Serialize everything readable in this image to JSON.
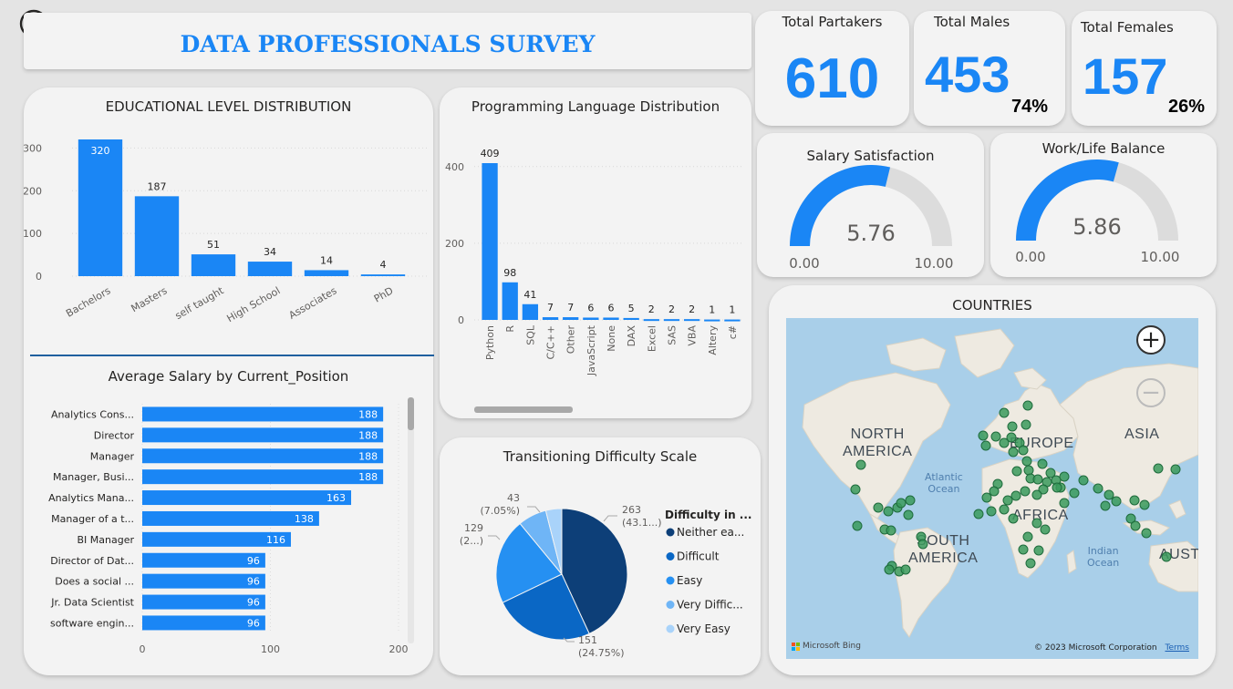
{
  "header": {
    "title": "DATA PROFESSIONALS SURVEY"
  },
  "kpis": {
    "partakers": {
      "label": "Total Partakers",
      "value": "610"
    },
    "males": {
      "label": "Total Males",
      "value": "453",
      "pct": "74%"
    },
    "females": {
      "label": "Total Females",
      "value": "157",
      "pct": "26%"
    }
  },
  "gauges": {
    "salary": {
      "label": "Salary Satisfaction",
      "value": 5.76,
      "value_text": "5.76",
      "min_text": "0.00",
      "max_text": "10.00"
    },
    "worklife": {
      "label": "Work/Life Balance",
      "value": 5.86,
      "value_text": "5.86",
      "min_text": "0.00",
      "max_text": "10.00"
    }
  },
  "countries": {
    "title": "COUNTRIES",
    "labels": {
      "north_america": [
        "NORTH",
        "AMERICA"
      ],
      "south_america": [
        "SOUTH",
        "AMERICA"
      ],
      "europe": "EUROPE",
      "asia": "ASIA",
      "africa": "AFRICA",
      "aust": "AUST",
      "atlantic": [
        "Atlantic",
        "Ocean"
      ],
      "indian": [
        "Indian",
        "Ocean"
      ]
    },
    "attribution": "Microsoft Bing",
    "copyright": "© 2023 Microsoft Corporation",
    "terms": "Terms",
    "zoom_in": "+",
    "zoom_out": "−"
  },
  "colors": {
    "accent": "#1a86f5",
    "gauge_track": "#dcdcdc",
    "dot": "#3a9a5c",
    "map_water": "#a9cfe9",
    "map_land": "#eeeae1"
  },
  "icons": {
    "back": "back-arrow-icon"
  },
  "chart_data": [
    {
      "id": "edu",
      "type": "bar",
      "title": "EDUCATIONAL LEVEL DISTRIBUTION",
      "categories": [
        "Bachelors",
        "Masters",
        "self taught",
        "High School",
        "Associates",
        "PhD"
      ],
      "values": [
        320,
        187,
        51,
        34,
        14,
        4
      ],
      "yticks": [
        0,
        100,
        200,
        300
      ],
      "ylim": [
        0,
        320
      ],
      "grid": true
    },
    {
      "id": "lang",
      "type": "bar",
      "title": "Programming Language Distribution",
      "categories": [
        "Python",
        "R",
        "SQL",
        "C/C++",
        "Other",
        "JavaScript",
        "None",
        "DAX",
        "Excel",
        "SAS",
        "VBA",
        "Altery",
        "c#"
      ],
      "values": [
        409,
        98,
        41,
        7,
        7,
        6,
        6,
        5,
        2,
        2,
        2,
        1,
        1
      ],
      "yticks": [
        0,
        200,
        400
      ],
      "ylim": [
        0,
        409
      ],
      "grid": true
    },
    {
      "id": "salary",
      "type": "bar",
      "orientation": "horizontal",
      "title": "Average Salary by Current_Position",
      "categories": [
        "Analytics Cons...",
        "Director",
        "Manager",
        "Manager, Busi...",
        "Analytics Mana...",
        "Manager of a t...",
        "BI Manager",
        "Director of Dat...",
        "Does a social ...",
        "Jr. Data Scientist",
        "software engin..."
      ],
      "values": [
        188,
        188,
        188,
        188,
        163,
        138,
        116,
        96,
        96,
        96,
        96
      ],
      "xticks": [
        0,
        100,
        200
      ],
      "xlim": [
        0,
        200
      ],
      "grid": true
    },
    {
      "id": "difficulty",
      "type": "pie",
      "title": "Transitioning Difficulty Scale",
      "legend_title": "Difficulty in ...",
      "legend_position": "right",
      "slices": [
        {
          "label": "Neither ea...",
          "value": 263,
          "pct_text": "(43.1...)",
          "color": "#0d3f78"
        },
        {
          "label": "Difficult",
          "value": 151,
          "pct_text": "(24.75%)",
          "color": "#0a67c5"
        },
        {
          "label": "Easy",
          "value": 129,
          "pct_text": "(2...)",
          "color": "#2590f2"
        },
        {
          "label": "Very Diffic...",
          "value": 43,
          "pct_text": "(7.05%)",
          "color": "#6fb5f6"
        },
        {
          "label": "Very Easy",
          "value": 24,
          "pct_text": "",
          "color": "#a9d3fa"
        }
      ]
    }
  ]
}
